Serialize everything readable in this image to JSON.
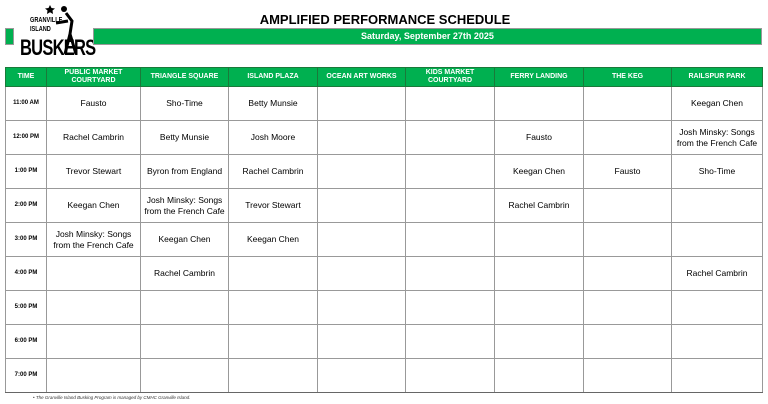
{
  "logo": {
    "line1": "GRANVILLE",
    "line2": "ISLAND",
    "line3": "BUSKERS"
  },
  "title": "AMPLIFIED PERFORMANCE SCHEDULE",
  "date": "Saturday, September 27th 2025",
  "colors": {
    "accent": "#00b050"
  },
  "columns": [
    "TIME",
    "PUBLIC MARKET COURTYARD",
    "TRIANGLE SQUARE",
    "ISLAND PLAZA",
    "OCEAN ART WORKS",
    "KIDS MARKET COURTYARD",
    "FERRY LANDING",
    "THE KEG",
    "RAILSPUR PARK"
  ],
  "rows": [
    [
      "11:00 AM",
      "Fausto",
      "Sho-Time",
      "Betty Munsie",
      "",
      "",
      "",
      "",
      "Keegan Chen"
    ],
    [
      "12:00 PM",
      "Rachel Cambrin",
      "Betty Munsie",
      "Josh Moore",
      "",
      "",
      "Fausto",
      "",
      "Josh Minsky: Songs from the French Cafe"
    ],
    [
      "1:00 PM",
      "Trevor Stewart",
      "Byron from England",
      "Rachel Cambrin",
      "",
      "",
      "Keegan Chen",
      "Fausto",
      "Sho-Time"
    ],
    [
      "2:00 PM",
      "Keegan Chen",
      "Josh Minsky: Songs from the French Cafe",
      "Trevor Stewart",
      "",
      "",
      "Rachel Cambrin",
      "",
      ""
    ],
    [
      "3:00 PM",
      "Josh Minsky: Songs from the French Cafe",
      "Keegan Chen",
      "Keegan Chen",
      "",
      "",
      "",
      "",
      ""
    ],
    [
      "4:00 PM",
      "",
      "Rachel Cambrin",
      "",
      "",
      "",
      "",
      "",
      "Rachel Cambrin"
    ],
    [
      "5:00 PM",
      "",
      "",
      "",
      "",
      "",
      "",
      "",
      ""
    ],
    [
      "6:00 PM",
      "",
      "",
      "",
      "",
      "",
      "",
      "",
      ""
    ],
    [
      "7:00 PM",
      "",
      "",
      "",
      "",
      "",
      "",
      "",
      ""
    ]
  ],
  "footnote": "• The Granville Island Busking Program is managed by CMHC Granville Island."
}
